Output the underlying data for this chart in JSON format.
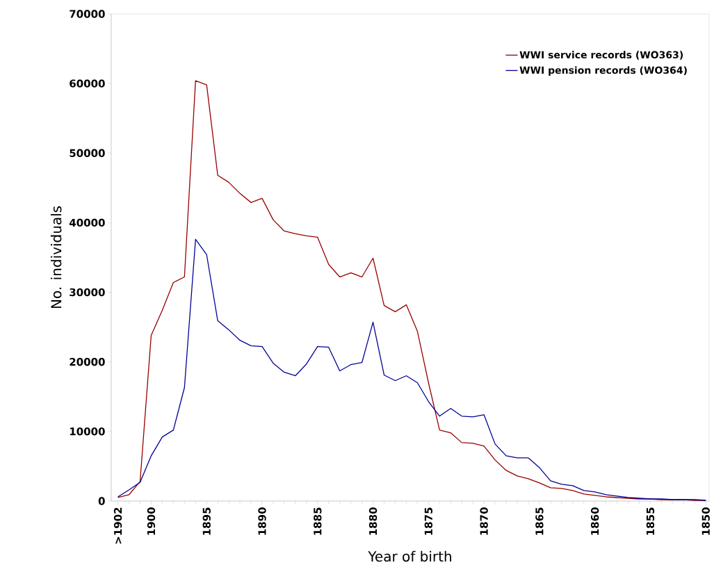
{
  "chart_data": {
    "type": "line",
    "xlabel": "Year of birth",
    "ylabel": "No. individuals",
    "categories": [
      ">1902",
      null,
      null,
      "1900",
      null,
      null,
      null,
      null,
      "1895",
      null,
      null,
      null,
      null,
      "1890",
      null,
      null,
      null,
      null,
      "1885",
      null,
      null,
      null,
      null,
      "1880",
      null,
      null,
      null,
      null,
      "1875",
      null,
      null,
      null,
      null,
      "1870",
      null,
      null,
      null,
      null,
      "1865",
      null,
      null,
      null,
      null,
      "1860",
      null,
      null,
      null,
      null,
      "1855",
      null,
      null,
      null,
      null,
      "1850"
    ],
    "series": [
      {
        "name": "WWI service records (WO363)",
        "color": "#990000",
        "values": [
          500,
          900,
          2800,
          23800,
          27400,
          31400,
          32200,
          60400,
          59800,
          46800,
          45800,
          44200,
          42900,
          43500,
          40400,
          38800,
          38400,
          38100,
          37900,
          34000,
          32200,
          32800,
          32200,
          34900,
          28100,
          27200,
          28200,
          24400,
          17000,
          10200,
          9800,
          8400,
          8300,
          7900,
          5900,
          4400,
          3600,
          3200,
          2600,
          1900,
          1800,
          1500,
          1000,
          800,
          600,
          500,
          400,
          300,
          300,
          200,
          200,
          200,
          100,
          100
        ]
      },
      {
        "name": "WWI pension records (WO364)",
        "color": "#000099",
        "values": [
          600,
          1600,
          2700,
          6500,
          9200,
          10200,
          16300,
          37600,
          35400,
          25900,
          24600,
          23100,
          22300,
          22200,
          19800,
          18500,
          18000,
          19700,
          22200,
          22100,
          18700,
          19600,
          19900,
          25700,
          18100,
          17300,
          18000,
          17000,
          14300,
          12200,
          13300,
          12200,
          12100,
          12400,
          8200,
          6500,
          6200,
          6200,
          4800,
          2900,
          2400,
          2200,
          1500,
          1300,
          900,
          700,
          500,
          400,
          300,
          300,
          200,
          200,
          200,
          100
        ]
      }
    ],
    "ylim": [
      0,
      70000
    ],
    "yticks": [
      0,
      10000,
      20000,
      30000,
      40000,
      50000,
      60000,
      70000
    ],
    "legend": "top right",
    "grid": false,
    "marker": "none",
    "line_style": "solid"
  }
}
